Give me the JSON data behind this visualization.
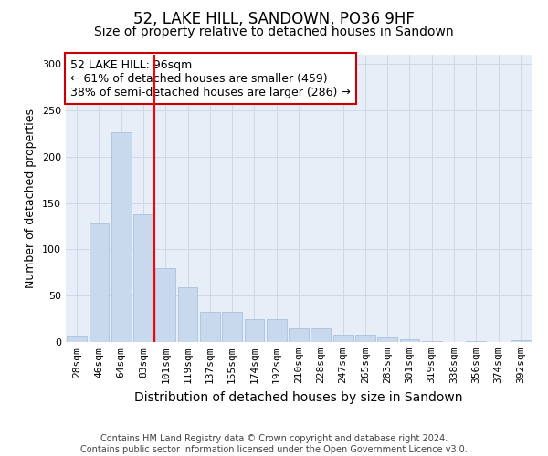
{
  "title": "52, LAKE HILL, SANDOWN, PO36 9HF",
  "subtitle": "Size of property relative to detached houses in Sandown",
  "xlabel": "Distribution of detached houses by size in Sandown",
  "ylabel": "Number of detached properties",
  "bar_color": "#c8d9ee",
  "bar_edge_color": "#a0bcd8",
  "background_color": "#ffffff",
  "axes_bg_color": "#e8eef8",
  "grid_color": "#d0d8e8",
  "categories": [
    "28sqm",
    "46sqm",
    "64sqm",
    "83sqm",
    "101sqm",
    "119sqm",
    "137sqm",
    "155sqm",
    "174sqm",
    "192sqm",
    "210sqm",
    "228sqm",
    "247sqm",
    "265sqm",
    "283sqm",
    "301sqm",
    "319sqm",
    "338sqm",
    "356sqm",
    "374sqm",
    "392sqm"
  ],
  "values": [
    7,
    128,
    226,
    138,
    80,
    59,
    32,
    32,
    25,
    25,
    15,
    15,
    8,
    8,
    5,
    3,
    1,
    0,
    1,
    0,
    2
  ],
  "ylim": [
    0,
    310
  ],
  "yticks": [
    0,
    50,
    100,
    150,
    200,
    250,
    300
  ],
  "property_line_x": 4.0,
  "annotation_text": "52 LAKE HILL: 96sqm\n← 61% of detached houses are smaller (459)\n38% of semi-detached houses are larger (286) →",
  "annotation_box_color": "#ffffff",
  "annotation_border_color": "#cc0000",
  "footer_text": "Contains HM Land Registry data © Crown copyright and database right 2024.\nContains public sector information licensed under the Open Government Licence v3.0.",
  "title_fontsize": 12,
  "subtitle_fontsize": 10,
  "xlabel_fontsize": 10,
  "ylabel_fontsize": 9,
  "tick_fontsize": 8,
  "annotation_fontsize": 9,
  "footer_fontsize": 7
}
